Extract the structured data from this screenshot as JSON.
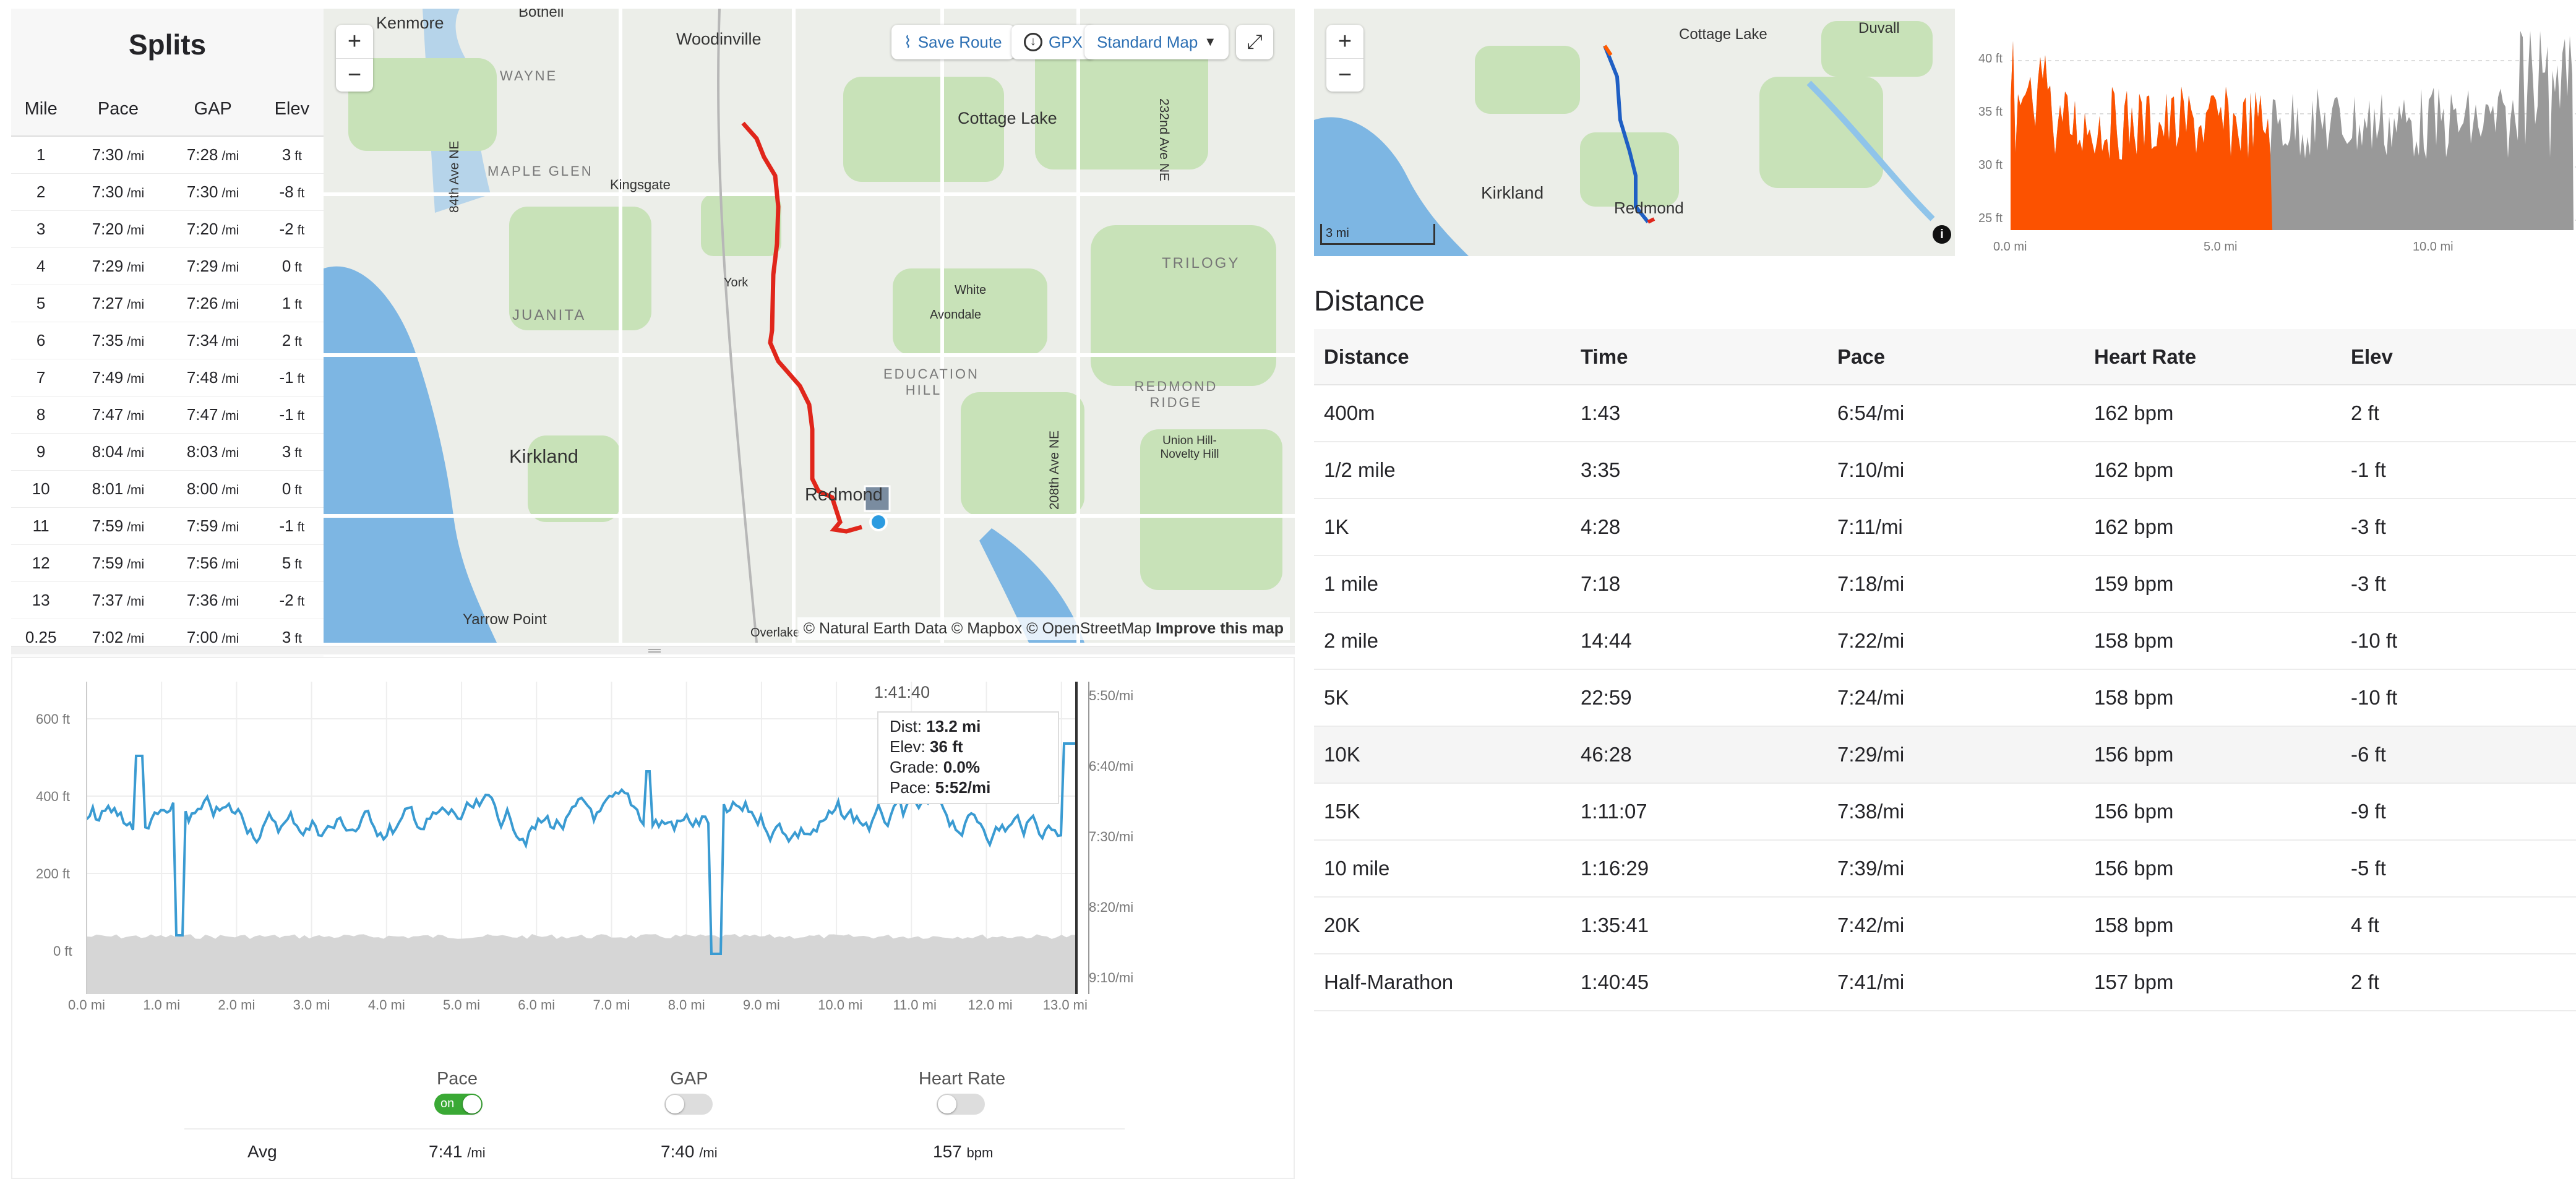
{
  "splits": {
    "title": "Splits",
    "headers": [
      "Mile",
      "Pace",
      "GAP",
      "Elev"
    ],
    "rows": [
      {
        "mile": "1",
        "pace": "7:30",
        "gap": "7:28",
        "elev": "3"
      },
      {
        "mile": "2",
        "pace": "7:30",
        "gap": "7:30",
        "elev": "-8"
      },
      {
        "mile": "3",
        "pace": "7:20",
        "gap": "7:20",
        "elev": "-2"
      },
      {
        "mile": "4",
        "pace": "7:29",
        "gap": "7:29",
        "elev": "0"
      },
      {
        "mile": "5",
        "pace": "7:27",
        "gap": "7:26",
        "elev": "1"
      },
      {
        "mile": "6",
        "pace": "7:35",
        "gap": "7:34",
        "elev": "2"
      },
      {
        "mile": "7",
        "pace": "7:49",
        "gap": "7:48",
        "elev": "-1"
      },
      {
        "mile": "8",
        "pace": "7:47",
        "gap": "7:47",
        "elev": "-1"
      },
      {
        "mile": "9",
        "pace": "8:04",
        "gap": "8:03",
        "elev": "3"
      },
      {
        "mile": "10",
        "pace": "8:01",
        "gap": "8:00",
        "elev": "0"
      },
      {
        "mile": "11",
        "pace": "7:59",
        "gap": "7:59",
        "elev": "-1"
      },
      {
        "mile": "12",
        "pace": "7:59",
        "gap": "7:56",
        "elev": "5"
      },
      {
        "mile": "13",
        "pace": "7:37",
        "gap": "7:36",
        "elev": "-2"
      },
      {
        "mile": "0.25",
        "pace": "7:02",
        "gap": "7:00",
        "elev": "3"
      }
    ],
    "pace_unit": "/mi",
    "elev_unit": "ft"
  },
  "map": {
    "save_route": "Save Route",
    "gpx": "GPX",
    "map_style": "Standard Map",
    "zoom_in": "+",
    "zoom_out": "−",
    "attribution": "© Natural Earth Data © Mapbox © OpenStreetMap",
    "improve": "Improve this map",
    "labels": [
      "Kenmore",
      "Bothell",
      "Woodinville",
      "Cottage Lake",
      "WAYNE",
      "MAPLE GLEN",
      "Kingsgate",
      "84th Ave NE",
      "232nd Ave NE",
      "TRILOGY",
      "York",
      "White",
      "Avondale",
      "JUANITA",
      "EDUCATION HILL",
      "REDMOND RIDGE",
      "Union Hill-Novelty Hill",
      "Kirkland",
      "208th Ave NE",
      "Redmond",
      "Yarrow Point",
      "Overlake"
    ],
    "route_color": "#e0261b"
  },
  "small_map": {
    "zoom_in": "+",
    "zoom_out": "−",
    "scale": "3 mi",
    "labels": [
      "Cottage Lake",
      "Duvall",
      "Kirkland",
      "Redmond"
    ],
    "route_color_main": "#1f5fc4",
    "route_color_highlight": "#ff5a00"
  },
  "elev_chart": {
    "y_ticks": [
      "40 ft",
      "35 ft",
      "30 ft",
      "25 ft"
    ],
    "x_ticks": [
      "0.0 mi",
      "5.0 mi",
      "10.0 mi"
    ],
    "highlight_color": "#fc5200",
    "base_color": "#999999"
  },
  "chart": {
    "y_left_ticks": [
      "600 ft",
      "400 ft",
      "200 ft",
      "0 ft"
    ],
    "y_right_ticks": [
      "5:50/mi",
      "6:40/mi",
      "7:30/mi",
      "8:20/mi",
      "9:10/mi"
    ],
    "x_ticks": [
      "0.0 mi",
      "1.0 mi",
      "2.0 mi",
      "3.0 mi",
      "4.0 mi",
      "5.0 mi",
      "6.0 mi",
      "7.0 mi",
      "8.0 mi",
      "9.0 mi",
      "10.0 mi",
      "11.0 mi",
      "12.0 mi",
      "13.0 mi"
    ],
    "cursor_time": "1:41:40",
    "tooltip": {
      "dist_label": "Dist:",
      "dist": "13.2 mi",
      "elev_label": "Elev:",
      "elev": "36 ft",
      "grade_label": "Grade:",
      "grade": "0.0%",
      "pace_label": "Pace:",
      "pace": "5:52/mi"
    },
    "line_color": "#3a9bd2",
    "area_color": "#d6d6d6"
  },
  "toggles": {
    "pace": {
      "label": "Pace",
      "state": "on"
    },
    "gap": {
      "label": "GAP"
    },
    "hr": {
      "label": "Heart Rate"
    }
  },
  "averages": {
    "label": "Avg",
    "pace": "7:41",
    "pace_unit": "/mi",
    "gap": "7:40",
    "gap_unit": "/mi",
    "hr": "157",
    "hr_unit": "bpm"
  },
  "distance": {
    "title": "Distance",
    "headers": [
      "Distance",
      "Time",
      "Pace",
      "Heart Rate",
      "Elev"
    ],
    "rows": [
      {
        "d": "400m",
        "t": "1:43",
        "p": "6:54/mi",
        "hr": "162 bpm",
        "e": "2 ft"
      },
      {
        "d": "1/2 mile",
        "t": "3:35",
        "p": "7:10/mi",
        "hr": "162 bpm",
        "e": "-1 ft"
      },
      {
        "d": "1K",
        "t": "4:28",
        "p": "7:11/mi",
        "hr": "162 bpm",
        "e": "-3 ft"
      },
      {
        "d": "1 mile",
        "t": "7:18",
        "p": "7:18/mi",
        "hr": "159 bpm",
        "e": "-3 ft"
      },
      {
        "d": "2 mile",
        "t": "14:44",
        "p": "7:22/mi",
        "hr": "158 bpm",
        "e": "-10 ft"
      },
      {
        "d": "5K",
        "t": "22:59",
        "p": "7:24/mi",
        "hr": "158 bpm",
        "e": "-10 ft"
      },
      {
        "d": "10K",
        "t": "46:28",
        "p": "7:29/mi",
        "hr": "156 bpm",
        "e": "-6 ft"
      },
      {
        "d": "15K",
        "t": "1:11:07",
        "p": "7:38/mi",
        "hr": "156 bpm",
        "e": "-9 ft"
      },
      {
        "d": "10 mile",
        "t": "1:16:29",
        "p": "7:39/mi",
        "hr": "156 bpm",
        "e": "-5 ft"
      },
      {
        "d": "20K",
        "t": "1:35:41",
        "p": "7:42/mi",
        "hr": "158 bpm",
        "e": "4 ft"
      },
      {
        "d": "Half-Marathon",
        "t": "1:40:45",
        "p": "7:41/mi",
        "hr": "157 bpm",
        "e": "2 ft"
      }
    ]
  }
}
